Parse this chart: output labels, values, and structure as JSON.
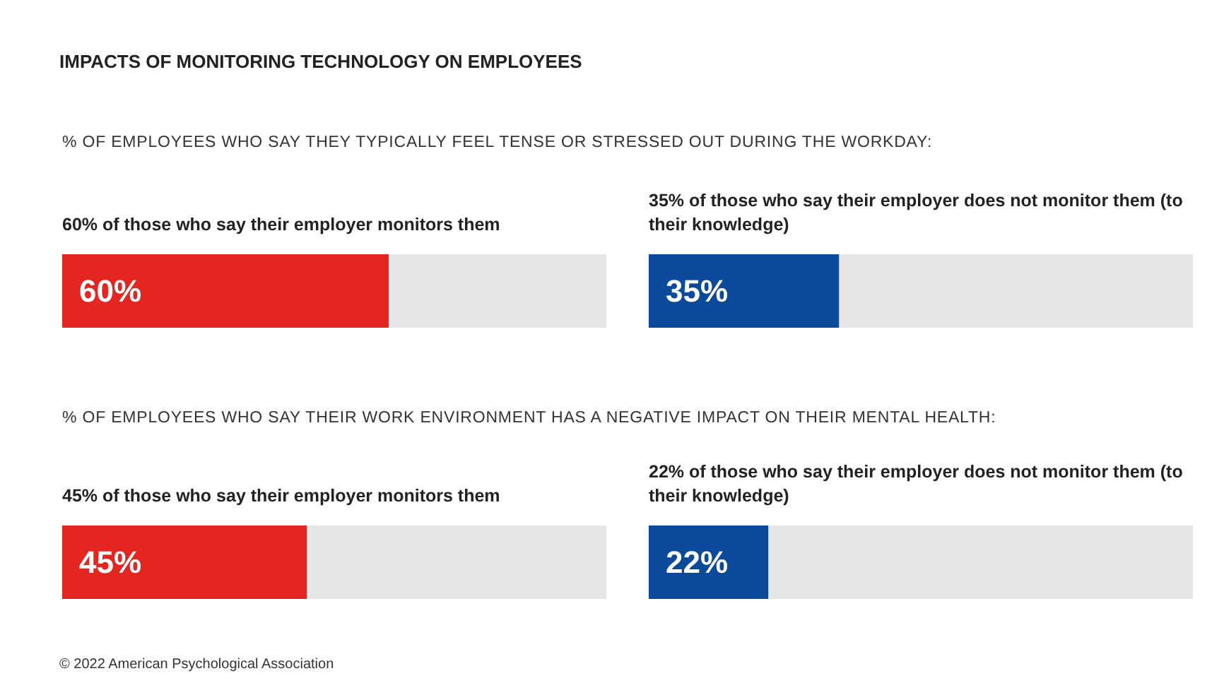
{
  "chart_data": [
    {
      "type": "bar",
      "orientation": "horizontal",
      "stacked": true,
      "xlim": [
        0,
        100
      ],
      "tick_labels": false,
      "title": "IMPACTS OF MONITORING TECHNOLOGY ON EMPLOYEES",
      "subtitle": "% OF EMPLOYEES WHO SAY THEY TYPICALLY FEEL TENSE OR STRESSED OUT DURING THE WORKDAY:",
      "annotations": [
        "60% of those who say their employer monitors them"
      ],
      "categories": [
        null
      ],
      "series": [
        {
          "color": "#e32620",
          "values": [
            60
          ],
          "value_labels": [
            "60%"
          ]
        },
        {
          "color": "#e6e6e6",
          "values": [
            40
          ]
        }
      ]
    },
    {
      "type": "bar",
      "orientation": "horizontal",
      "stacked": true,
      "xlim": [
        0,
        100
      ],
      "tick_labels": false,
      "annotations": [
        "35% of those who say their employer does not monitor them (to their knowledge)"
      ],
      "categories": [
        null
      ],
      "series": [
        {
          "color": "#0b4a9a",
          "values": [
            35
          ],
          "value_labels": [
            "35%"
          ]
        },
        {
          "color": "#e6e6e6",
          "values": [
            65
          ]
        }
      ]
    },
    {
      "type": "bar",
      "orientation": "horizontal",
      "stacked": true,
      "xlim": [
        0,
        100
      ],
      "tick_labels": false,
      "subtitle": "% OF EMPLOYEES WHO SAY THEIR WORK ENVIRONMENT HAS A NEGATIVE IMPACT ON THEIR MENTAL HEALTH:",
      "annotations": [
        "45% of those who say their employer monitors them"
      ],
      "categories": [
        null
      ],
      "series": [
        {
          "color": "#e32620",
          "values": [
            45
          ],
          "value_labels": [
            "45%"
          ]
        },
        {
          "color": "#e6e6e6",
          "values": [
            55
          ]
        }
      ]
    },
    {
      "type": "bar",
      "orientation": "horizontal",
      "stacked": true,
      "xlim": [
        0,
        100
      ],
      "tick_labels": false,
      "annotations": [
        "22% of those who say their employer does not monitor them (to their knowledge)",
        "© 2022 American Psychological Association"
      ],
      "categories": [
        null
      ],
      "series": [
        {
          "color": "#0b4a9a",
          "values": [
            22
          ],
          "value_labels": [
            "22%"
          ]
        },
        {
          "color": "#e6e6e6",
          "values": [
            78
          ]
        }
      ]
    }
  ]
}
